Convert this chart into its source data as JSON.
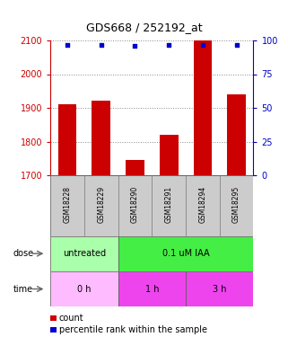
{
  "title": "GDS668 / 252192_at",
  "samples": [
    "GSM18228",
    "GSM18229",
    "GSM18290",
    "GSM18291",
    "GSM18294",
    "GSM18295"
  ],
  "count_values": [
    1910,
    1922,
    1745,
    1820,
    2100,
    1940
  ],
  "percentile_values": [
    97,
    97,
    96,
    97,
    97,
    97
  ],
  "ylim_left": [
    1700,
    2100
  ],
  "ylim_right": [
    0,
    100
  ],
  "yticks_left": [
    1700,
    1800,
    1900,
    2000,
    2100
  ],
  "yticks_right": [
    0,
    25,
    50,
    75,
    100
  ],
  "bar_color": "#cc0000",
  "dot_color": "#0000cc",
  "bar_bottom": 1700,
  "dose_labels": [
    {
      "label": "untreated",
      "start": 0,
      "end": 2,
      "color": "#aaffaa"
    },
    {
      "label": "0.1 uM IAA",
      "start": 2,
      "end": 6,
      "color": "#44ee44"
    }
  ],
  "time_labels": [
    {
      "label": "0 h",
      "start": 0,
      "end": 2,
      "color": "#ffbbff"
    },
    {
      "label": "1 h",
      "start": 2,
      "end": 4,
      "color": "#ee44ee"
    },
    {
      "label": "3 h",
      "start": 4,
      "end": 6,
      "color": "#ee44ee"
    }
  ],
  "dose_row_label": "dose",
  "time_row_label": "time",
  "legend_count_label": "count",
  "legend_pct_label": "percentile rank within the sample",
  "left_axis_color": "#cc0000",
  "right_axis_color": "#0000cc",
  "grid_color": "#888888",
  "bg_color": "#ffffff",
  "label_area_color": "#cccccc"
}
